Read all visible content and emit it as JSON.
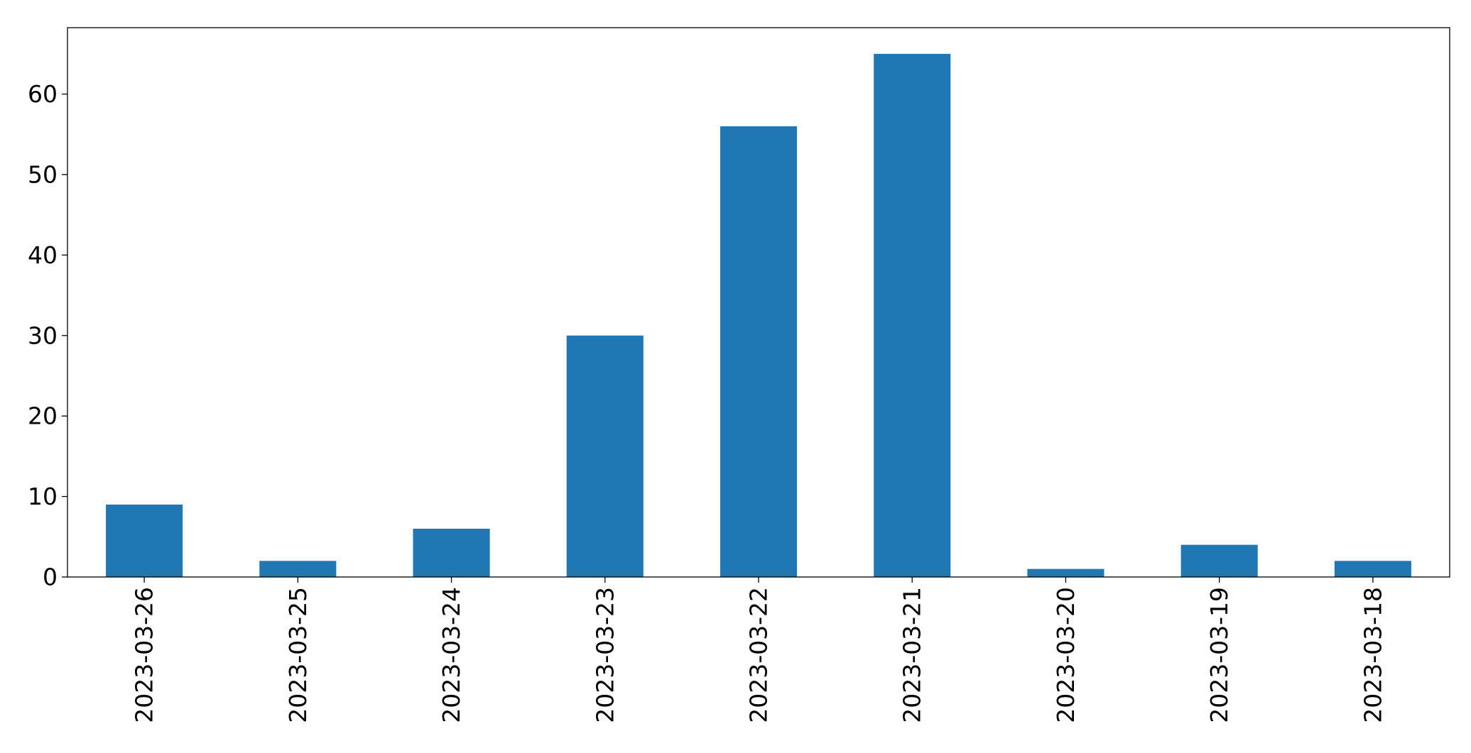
{
  "chart_data": {
    "type": "bar",
    "title": "",
    "xlabel": "",
    "ylabel": "",
    "categories": [
      "2023-03-26",
      "2023-03-25",
      "2023-03-24",
      "2023-03-23",
      "2023-03-22",
      "2023-03-21",
      "2023-03-20",
      "2023-03-19",
      "2023-03-18"
    ],
    "values": [
      9,
      2,
      6,
      30,
      56,
      65,
      1,
      4,
      2
    ],
    "ylim": [
      0,
      68.25
    ],
    "yticks": [
      0,
      10,
      20,
      30,
      40,
      50,
      60
    ],
    "ytick_labels": [
      "0",
      "10",
      "20",
      "30",
      "40",
      "50",
      "60"
    ],
    "grid": false,
    "legend": "none",
    "bar_color": "#1f77b4"
  }
}
